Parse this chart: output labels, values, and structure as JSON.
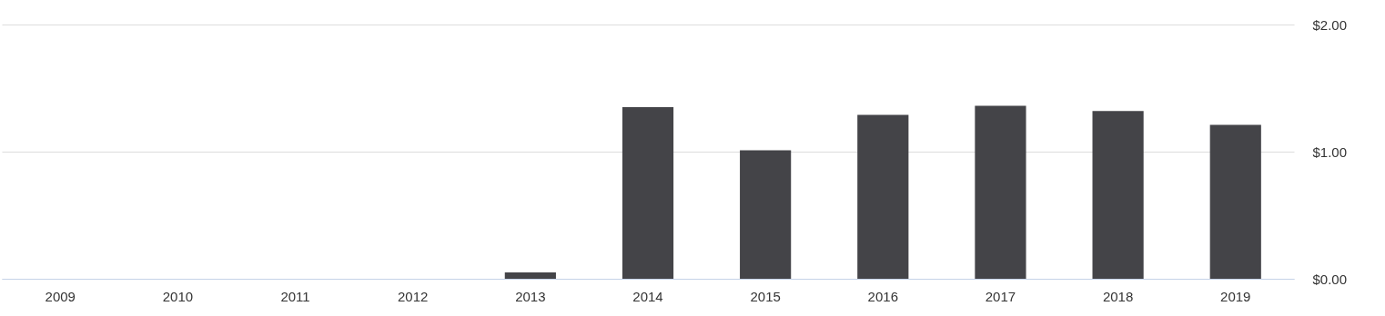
{
  "chart_data": {
    "type": "bar",
    "categories": [
      "2009",
      "2010",
      "2011",
      "2012",
      "2013",
      "2014",
      "2015",
      "2016",
      "2017",
      "2018",
      "2019"
    ],
    "values": [
      0,
      0,
      0,
      0,
      0.05,
      1.35,
      1.01,
      1.29,
      1.36,
      1.32,
      1.21
    ],
    "color": "#444448",
    "ylim": [
      0,
      2
    ],
    "yticks": [
      {
        "value": 0,
        "label": "$0.00"
      },
      {
        "value": 1,
        "label": "$1.00"
      },
      {
        "value": 2,
        "label": "$2.00"
      }
    ],
    "grid": "y"
  }
}
